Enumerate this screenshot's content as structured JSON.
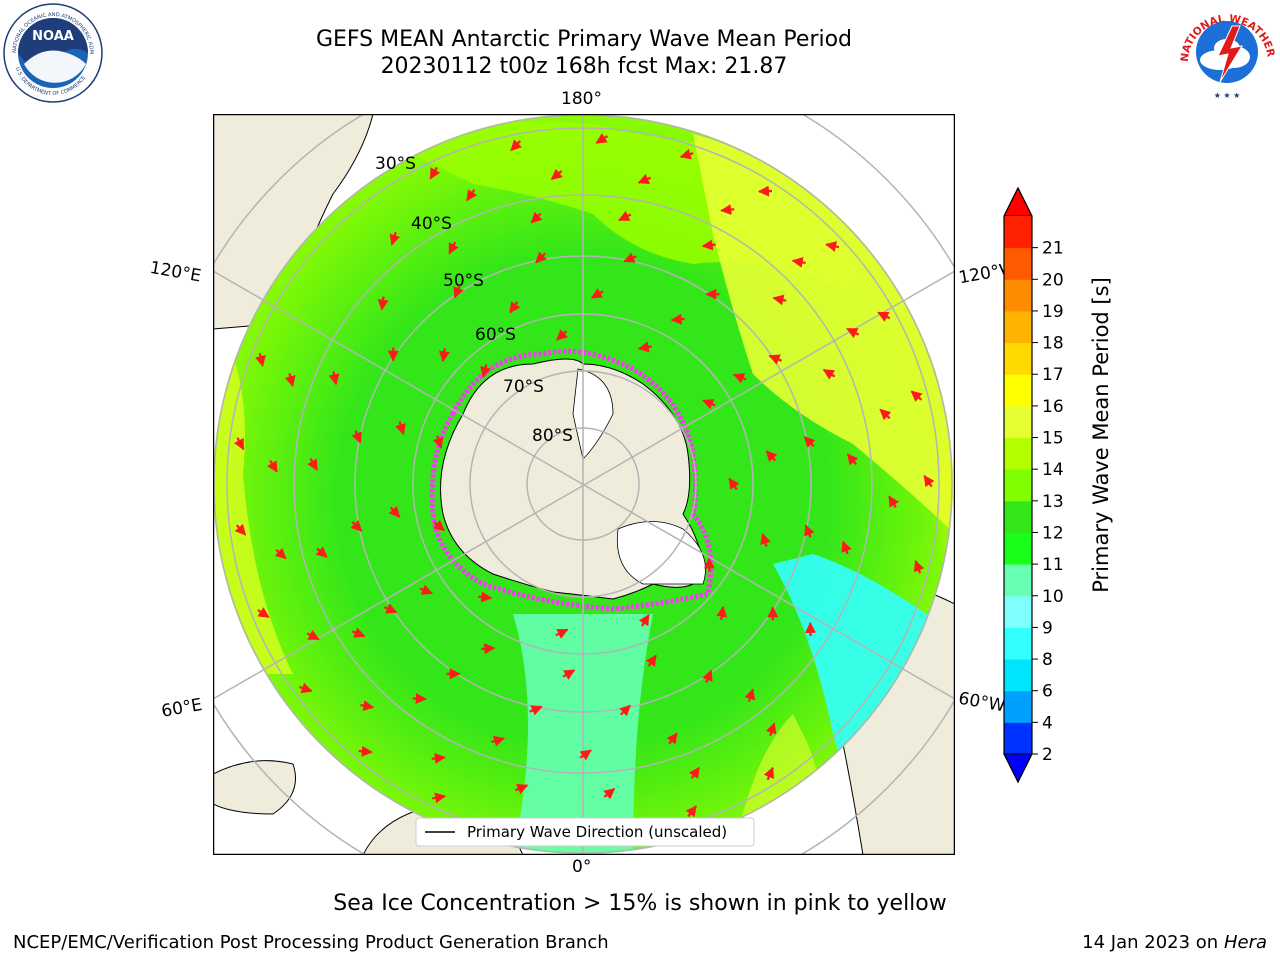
{
  "header": {
    "title_line1": "GEFS MEAN Antarctic Primary Wave Mean Period",
    "title_line2": "20230112 t00z 168h fcst   Max: 21.87"
  },
  "logos": {
    "left": "noaa-logo",
    "right": "nws-logo",
    "noaa_text": "NOAA",
    "noaa_ring_text": "NATIONAL OCEANIC AND ATMOSPHERIC ADMINISTRATION",
    "noaa_ring_text_bottom": "U.S. DEPARTMENT OF COMMERCE",
    "nws_ring_text": "NATIONAL WEATHER SERVICE"
  },
  "map": {
    "projection": "south-polar-stereographic",
    "lon_labels": {
      "top": "180°",
      "bottom": "0°",
      "upper_left": "120°E",
      "upper_right": "120°W",
      "lower_left": "60°E",
      "lower_right": "60°W"
    },
    "lat_labels": [
      "30°S",
      "40°S",
      "50°S",
      "60°S",
      "70°S",
      "80°S"
    ],
    "legend": "Primary Wave Direction (unscaled)",
    "colors": {
      "land": "#efecdc",
      "arrow": "#ff1a1a",
      "grid": "#b4b4b4",
      "ice_edge": "#ff33ff"
    }
  },
  "colorbar": {
    "label": "Primary Wave Mean Period [s]",
    "ticks": [
      "2",
      "4",
      "6",
      "8",
      "9",
      "10",
      "11",
      "12",
      "13",
      "14",
      "15",
      "16",
      "17",
      "18",
      "19",
      "20",
      "21"
    ],
    "colors": [
      "#0032ff",
      "#00a0ff",
      "#00e5ff",
      "#33ffff",
      "#80ffff",
      "#66ffb3",
      "#1aff1a",
      "#33e619",
      "#7fff00",
      "#b3ff00",
      "#e6ff33",
      "#ffff00",
      "#ffd900",
      "#ffb300",
      "#ff8c00",
      "#ff5a00",
      "#ff2200"
    ],
    "under_color": "#0000ff",
    "over_color": "#ff0000"
  },
  "note": "Sea Ice Concentration > 15% is shown in pink to yellow",
  "footer": {
    "left": "NCEP/EMC/Verification Post Processing Product Generation Branch",
    "right_prefix": "14 Jan 2023 on ",
    "right_host": "Hera"
  }
}
